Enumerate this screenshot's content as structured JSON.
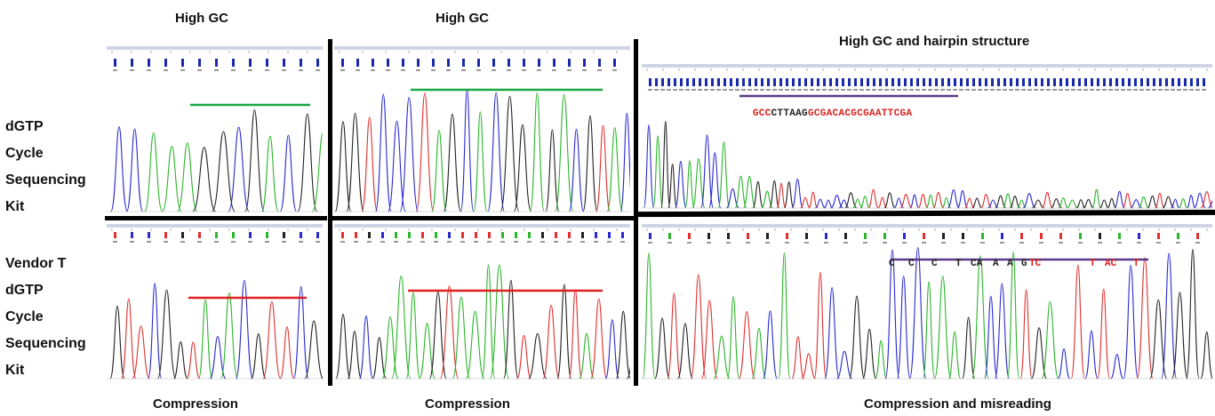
{
  "columns": [
    {
      "header": "High GC",
      "caption": "Compression"
    },
    {
      "header": "High GC",
      "caption": "Compression"
    },
    {
      "header": "High GC and hairpin structure",
      "caption": "Compression and misreading"
    }
  ],
  "rows": [
    {
      "label_lines": [
        "dGTP",
        "Cycle",
        "Sequencing",
        "Kit"
      ]
    },
    {
      "label_lines": [
        "Vendor T",
        "dGTP",
        "Cycle",
        "Sequencing",
        "Kit"
      ]
    }
  ],
  "sequences": {
    "top_right": [
      {
        "text": "GCC",
        "color": "red"
      },
      {
        "text": "CTTAAG",
        "color": "black"
      },
      {
        "text": "GCGACACGCGAATTCGA",
        "color": "red"
      }
    ],
    "bottom_right": [
      {
        "text": "C",
        "color": "black"
      },
      {
        "text": "C",
        "color": "black"
      },
      {
        "text": "C",
        "color": "black"
      },
      {
        "text": "T",
        "color": "black"
      },
      {
        "text": "CA",
        "color": "black"
      },
      {
        "text": "A",
        "color": "black"
      },
      {
        "text": "A",
        "color": "black"
      },
      {
        "text": "G",
        "color": "black"
      },
      {
        "text": "TC",
        "color": "red"
      },
      {
        "text": "T",
        "color": "red"
      },
      {
        "text": "AC",
        "color": "red"
      },
      {
        "text": "T",
        "color": "red"
      }
    ]
  },
  "colors": {
    "trace_a": "#2bb52b",
    "trace_c": "#2a2ad0",
    "trace_g": "#222222",
    "trace_t": "#e03030",
    "good_bar": "#19a843",
    "bad_bar": "#e02020",
    "hairpin_bar": "#5b3a8a",
    "divider": "#000000"
  }
}
